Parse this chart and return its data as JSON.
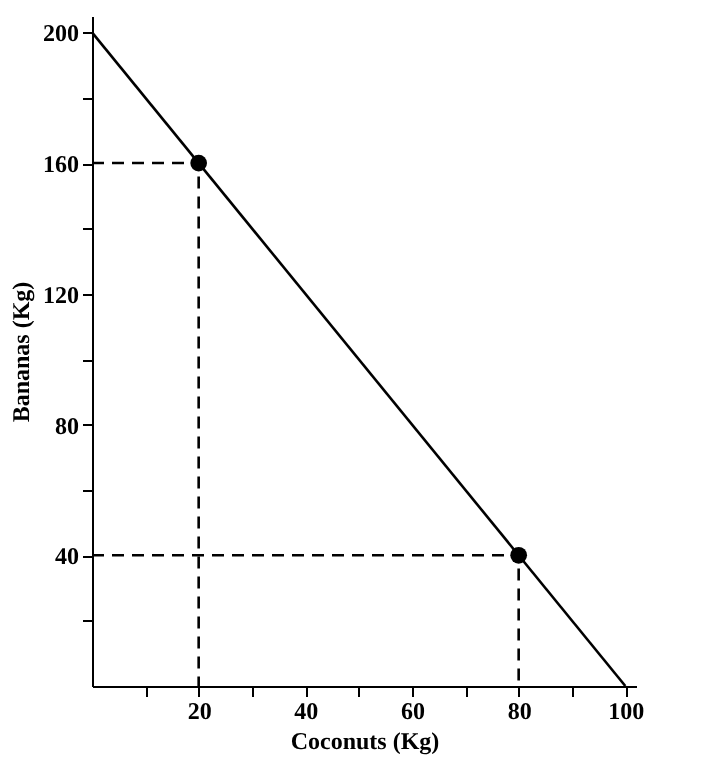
{
  "chart_data": {
    "type": "line",
    "xlabel": "Coconuts (Kg)",
    "ylabel": "Bananas (Kg)",
    "xlim": [
      0,
      102
    ],
    "ylim": [
      0,
      205
    ],
    "xticks": [
      {
        "value": 10,
        "label": null
      },
      20,
      {
        "value": 30,
        "label": null
      },
      40,
      {
        "value": 50,
        "label": null
      },
      60,
      {
        "value": 70,
        "label": null
      },
      80,
      {
        "value": 90,
        "label": null
      },
      100
    ],
    "yticks": [
      {
        "value": 20,
        "label": null
      },
      40,
      {
        "value": 60,
        "label": null
      },
      80,
      {
        "value": 100,
        "label": null
      },
      120,
      {
        "value": 140,
        "label": null
      },
      160,
      {
        "value": 180,
        "label": null
      },
      200
    ],
    "series": [
      {
        "color": "#000000",
        "x": [
          0,
          100
        ],
        "values": [
          200,
          0
        ],
        "line_style": "solid",
        "marker": "none"
      },
      {
        "type": "line",
        "color": "#000000",
        "x": [
          0,
          20,
          20
        ],
        "values": [
          160,
          160,
          0
        ],
        "line_style": "dashed",
        "marker": "none"
      },
      {
        "type": "line",
        "color": "#000000",
        "x": [
          0,
          80,
          80
        ],
        "values": [
          40,
          40,
          0
        ],
        "line_style": "dashed",
        "marker": "none"
      },
      {
        "type": "scatter",
        "color": "#000000",
        "x": [
          20,
          80
        ],
        "values": [
          160,
          40
        ],
        "marker": "circle"
      }
    ]
  }
}
